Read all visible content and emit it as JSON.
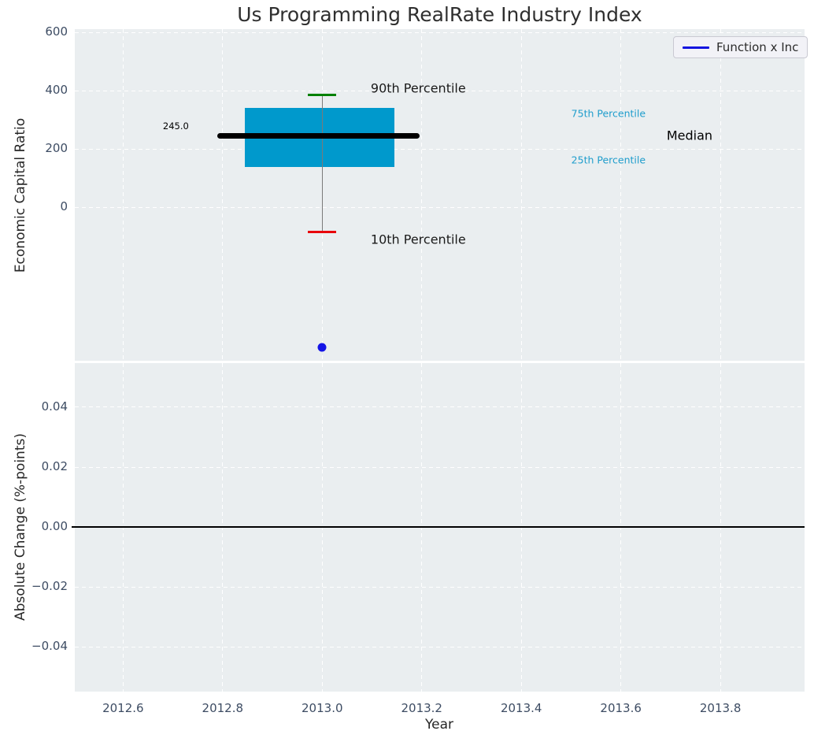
{
  "figure": {
    "title": "Us Programming RealRate Industry Index",
    "legend": {
      "label": "Function x Inc",
      "line_color": "#1515e0"
    },
    "colors": {
      "plot_background": "#eaeef0",
      "gridline": "#ffffff",
      "tick_label": "#3d4c63",
      "axis_label": "#262626"
    }
  },
  "chart_data": [
    {
      "type": "boxplot",
      "title": "Us Programming RealRate Industry Index",
      "ylabel": "Economic Capital Ratio",
      "xlabel": "",
      "grid": true,
      "legend_position": "upper right",
      "xlim": [
        2012.503,
        2013.969
      ],
      "ylim": [
        -527,
        611
      ],
      "show_xtick_labels": false,
      "xticks": [
        {
          "v": 2012.6,
          "label": "2012.6"
        },
        {
          "v": 2012.8,
          "label": "2012.8"
        },
        {
          "v": 2013.0,
          "label": "2013.0"
        },
        {
          "v": 2013.2,
          "label": "2013.2"
        },
        {
          "v": 2013.4,
          "label": "2013.4"
        },
        {
          "v": 2013.6,
          "label": "2013.6"
        },
        {
          "v": 2013.8,
          "label": "2013.8"
        }
      ],
      "yticks": [
        {
          "v": 0,
          "label": "0"
        },
        {
          "v": 200,
          "label": "200"
        },
        {
          "v": 400,
          "label": "400"
        },
        {
          "v": 600,
          "label": "600"
        }
      ],
      "box": {
        "x": 2013.0,
        "box_left": 2012.845,
        "box_right": 2013.145,
        "median": 245.0,
        "median_left": 2012.79,
        "median_right": 2013.195,
        "q1": 138,
        "q3": 341,
        "p10": -84,
        "p90": 384,
        "cap_halfwidth": 0.0285,
        "colors": {
          "box": "#0099cc",
          "median": "#000000",
          "whisker": "#7a7a7a",
          "p90": "#008000",
          "p10": "#e8000b"
        }
      },
      "series": [
        {
          "name": "Function x Inc",
          "color": "#1414e6",
          "marker": "circle",
          "points": [
            {
              "x": 2013.0,
              "y": -481
            }
          ]
        }
      ],
      "annotations": [
        {
          "text": "245.0",
          "x": 2012.706,
          "y": 278,
          "color": "#000000",
          "fontsize": 11.5
        },
        {
          "text": "90th Percentile",
          "x": 2013.193,
          "y": 408,
          "color": "#1a1a1a",
          "fontsize": 16
        },
        {
          "text": "10th Percentile",
          "x": 2013.193,
          "y": -111,
          "color": "#1a1a1a",
          "fontsize": 16
        },
        {
          "text": "75th Percentile",
          "x": 2013.575,
          "y": 322,
          "color": "#1f9dcc",
          "fontsize": 12.5
        },
        {
          "text": "25th Percentile",
          "x": 2013.575,
          "y": 162,
          "color": "#1f9dcc",
          "fontsize": 12.5
        },
        {
          "text": "Median",
          "x": 2013.738,
          "y": 246,
          "color": "#000000",
          "fontsize": 16
        }
      ]
    },
    {
      "type": "line",
      "ylabel": "Absolute Change (%-points)",
      "xlabel": "Year",
      "grid": true,
      "xlim": [
        2012.503,
        2013.969
      ],
      "ylim": [
        -0.0549,
        0.0547
      ],
      "show_xtick_labels": true,
      "xticks": [
        {
          "v": 2012.6,
          "label": "2012.6"
        },
        {
          "v": 2012.8,
          "label": "2012.8"
        },
        {
          "v": 2013.0,
          "label": "2013.0"
        },
        {
          "v": 2013.2,
          "label": "2013.2"
        },
        {
          "v": 2013.4,
          "label": "2013.4"
        },
        {
          "v": 2013.6,
          "label": "2013.6"
        },
        {
          "v": 2013.8,
          "label": "2013.8"
        }
      ],
      "yticks": [
        {
          "v": 0.04,
          "label": "0.04"
        },
        {
          "v": 0.02,
          "label": "0.02"
        },
        {
          "v": 0.0,
          "label": "0.00"
        },
        {
          "v": -0.02,
          "label": "−0.02"
        },
        {
          "v": -0.04,
          "label": "−0.04"
        }
      ],
      "hline": {
        "y": 0.0,
        "color": "#000000"
      },
      "series": []
    }
  ]
}
